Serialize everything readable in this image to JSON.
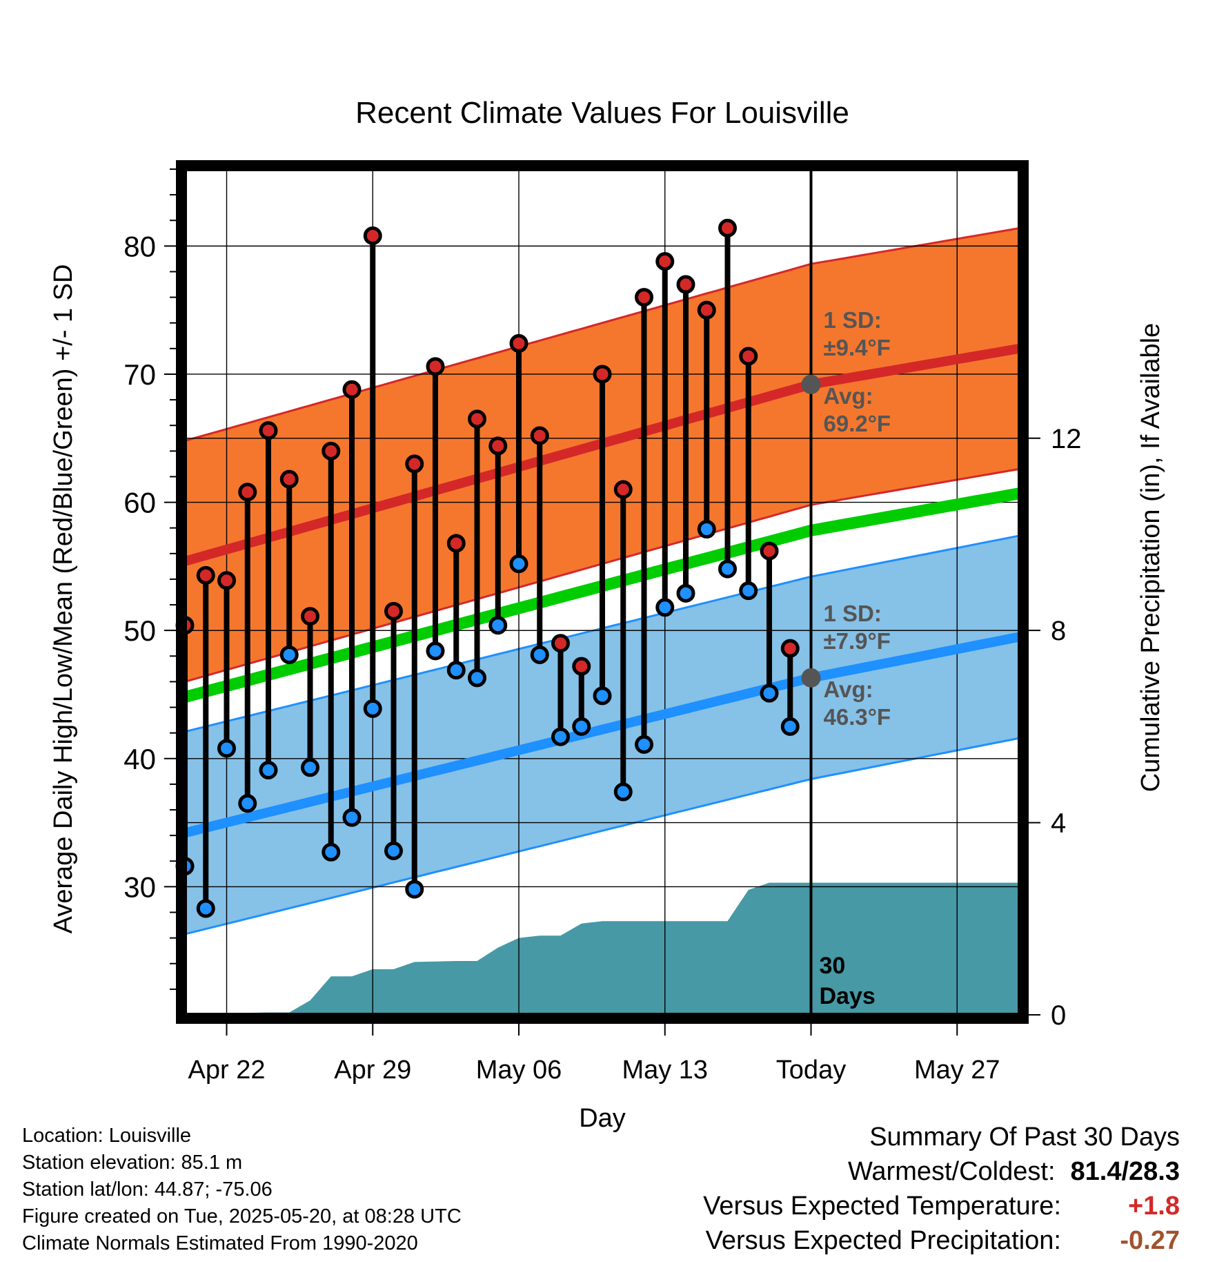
{
  "chart_data": {
    "type": "line",
    "title": "Recent Climate Values For Louisville",
    "xlabel": "Day",
    "ylabel": "Average Daily High/Low/Mean (Red/Blue/Green) +/- 1 SD",
    "y2label": "Cumulative Precipitation (in), If Available",
    "x_start": "2025-04-20",
    "x_end": "2025-05-30",
    "x_ticks": [
      {
        "date": "2025-04-22",
        "label": "Apr 22"
      },
      {
        "date": "2025-04-29",
        "label": "Apr 29"
      },
      {
        "date": "2025-05-06",
        "label": "May 06"
      },
      {
        "date": "2025-05-13",
        "label": "May 13"
      },
      {
        "date": "2025-05-20",
        "label": "Today"
      },
      {
        "date": "2025-05-27",
        "label": "May 27"
      }
    ],
    "ylim": [
      20,
      86
    ],
    "yticks": [
      30,
      40,
      50,
      60,
      70,
      80
    ],
    "y2lim": [
      0,
      17.6
    ],
    "y2ticks": [
      0,
      4,
      8,
      12
    ],
    "grid": true,
    "today": "2025-05-20",
    "today_label": "30\nDays",
    "daily_high_low": [
      {
        "date": "2025-04-20",
        "high": 50.4,
        "low": 31.6
      },
      {
        "date": "2025-04-21",
        "high": 54.3,
        "low": 28.3
      },
      {
        "date": "2025-04-22",
        "high": 53.9,
        "low": 40.8
      },
      {
        "date": "2025-04-23",
        "high": 60.8,
        "low": 36.5
      },
      {
        "date": "2025-04-24",
        "high": 65.6,
        "low": 39.1
      },
      {
        "date": "2025-04-25",
        "high": 61.8,
        "low": 48.1
      },
      {
        "date": "2025-04-26",
        "high": 51.1,
        "low": 39.3
      },
      {
        "date": "2025-04-27",
        "high": 64.0,
        "low": 32.7
      },
      {
        "date": "2025-04-28",
        "high": 68.8,
        "low": 35.4
      },
      {
        "date": "2025-04-29",
        "high": 80.8,
        "low": 43.9
      },
      {
        "date": "2025-04-30",
        "high": 51.5,
        "low": 32.8
      },
      {
        "date": "2025-05-01",
        "high": 63.0,
        "low": 29.8
      },
      {
        "date": "2025-05-02",
        "high": 70.6,
        "low": 48.4
      },
      {
        "date": "2025-05-03",
        "high": 56.8,
        "low": 46.9
      },
      {
        "date": "2025-05-04",
        "high": 66.5,
        "low": 46.3
      },
      {
        "date": "2025-05-05",
        "high": 64.4,
        "low": 50.4
      },
      {
        "date": "2025-05-06",
        "high": 72.4,
        "low": 55.2
      },
      {
        "date": "2025-05-07",
        "high": 65.2,
        "low": 48.1
      },
      {
        "date": "2025-05-08",
        "high": 49.0,
        "low": 41.7
      },
      {
        "date": "2025-05-09",
        "high": 47.2,
        "low": 42.5
      },
      {
        "date": "2025-05-10",
        "high": 70.0,
        "low": 44.9
      },
      {
        "date": "2025-05-11",
        "high": 61.0,
        "low": 37.4
      },
      {
        "date": "2025-05-12",
        "high": 76.0,
        "low": 41.1
      },
      {
        "date": "2025-05-13",
        "high": 78.8,
        "low": 51.8
      },
      {
        "date": "2025-05-14",
        "high": 77.0,
        "low": 52.9
      },
      {
        "date": "2025-05-15",
        "high": 75.0,
        "low": 57.9
      },
      {
        "date": "2025-05-16",
        "high": 81.4,
        "low": 54.8
      },
      {
        "date": "2025-05-17",
        "high": 71.4,
        "low": 53.1
      },
      {
        "date": "2025-05-18",
        "high": 56.2,
        "low": 45.1
      },
      {
        "date": "2025-05-19",
        "high": 48.6,
        "low": 42.5
      }
    ],
    "normals": {
      "high_avg": [
        {
          "date": "2025-04-20",
          "value": 55.4
        },
        {
          "date": "2025-05-20",
          "value": 69.2
        },
        {
          "date": "2025-05-30",
          "value": 72.0
        }
      ],
      "high_sd": 9.4,
      "low_avg": [
        {
          "date": "2025-04-20",
          "value": 34.2
        },
        {
          "date": "2025-05-20",
          "value": 46.3
        },
        {
          "date": "2025-05-30",
          "value": 49.5
        }
      ],
      "low_sd": 7.9,
      "mean_avg": [
        {
          "date": "2025-04-20",
          "value": 44.8
        },
        {
          "date": "2025-05-20",
          "value": 57.8
        },
        {
          "date": "2025-05-30",
          "value": 60.7
        }
      ]
    },
    "precip_cumulative": [
      {
        "date": "2025-04-20",
        "value": 0.0
      },
      {
        "date": "2025-04-21",
        "value": 0.02
      },
      {
        "date": "2025-04-24",
        "value": 0.05
      },
      {
        "date": "2025-04-25",
        "value": 0.05
      },
      {
        "date": "2025-04-26",
        "value": 0.3
      },
      {
        "date": "2025-04-27",
        "value": 0.8
      },
      {
        "date": "2025-04-28",
        "value": 0.8
      },
      {
        "date": "2025-04-29",
        "value": 0.95
      },
      {
        "date": "2025-04-30",
        "value": 0.95
      },
      {
        "date": "2025-05-01",
        "value": 1.1
      },
      {
        "date": "2025-05-03",
        "value": 1.12
      },
      {
        "date": "2025-05-04",
        "value": 1.12
      },
      {
        "date": "2025-05-05",
        "value": 1.4
      },
      {
        "date": "2025-05-06",
        "value": 1.6
      },
      {
        "date": "2025-05-07",
        "value": 1.65
      },
      {
        "date": "2025-05-08",
        "value": 1.65
      },
      {
        "date": "2025-05-09",
        "value": 1.9
      },
      {
        "date": "2025-05-10",
        "value": 1.95
      },
      {
        "date": "2025-05-16",
        "value": 1.95
      },
      {
        "date": "2025-05-17",
        "value": 2.6
      },
      {
        "date": "2025-05-18",
        "value": 2.75
      },
      {
        "date": "2025-05-30",
        "value": 2.75
      }
    ],
    "annotations": {
      "high_sd": "1 SD:\n±9.4°F",
      "high_avg": "Avg:\n69.2°F",
      "low_sd": "1 SD:\n±7.9°F",
      "low_avg": "Avg:\n46.3°F"
    }
  },
  "metadata_lines": [
    "Location: Louisville",
    "Station elevation: 85.1 m",
    "Station lat/lon: 44.87; -75.06",
    "Figure created on Tue, 2025-05-20, at 08:28 UTC",
    "Climate Normals Estimated From 1990-2020"
  ],
  "summary": {
    "heading": "Summary Of Past 30 Days",
    "warmest_coldest_label": "Warmest/Coldest:",
    "warmest_coldest_value": "81.4/28.3",
    "temp_label": "Versus Expected Temperature:",
    "temp_value": "+1.8",
    "precip_label": "Versus Expected Precipitation:",
    "precip_value": "-0.27"
  },
  "colors": {
    "high_band": "#f5772e",
    "high_line": "#d42828",
    "low_band": "#86c1e8",
    "low_line": "#1e90ff",
    "mean_line": "#00cc00",
    "precip": "#4799a6",
    "high_marker": "#d42828",
    "low_marker": "#1e90ff",
    "avg_marker": "#555555",
    "annotation_text": "#555555",
    "temp_anomaly": "#d42828",
    "precip_anomaly": "#a0522d"
  }
}
